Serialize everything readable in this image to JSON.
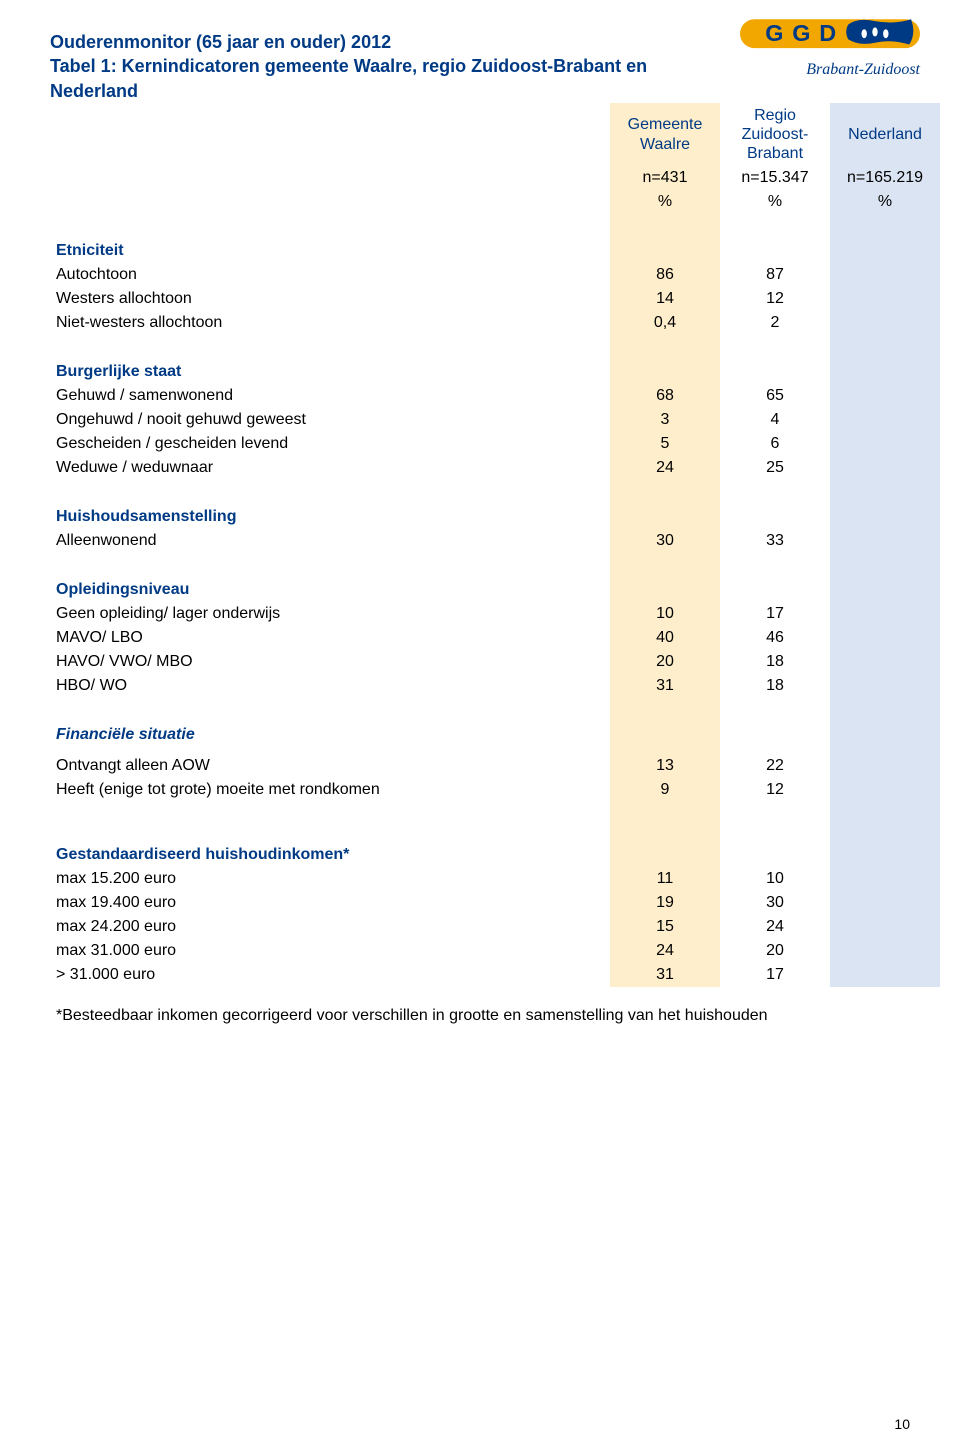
{
  "logo": {
    "top_text": "GGD",
    "sub_text": "Brabant-Zuidoost",
    "band_color": "#f2a600",
    "text_color": "#003a85"
  },
  "header": {
    "title_line1": "Ouderenmonitor (65 jaar en ouder) 2012",
    "title_line2": "Tabel 1: Kernindicatoren gemeente Waalre, regio Zuidoost-Brabant en Nederland"
  },
  "columns": {
    "c1": {
      "label": "Gemeente\nWaalre",
      "n": "n=431",
      "pct": "%",
      "bg": "#ffeecb"
    },
    "c2": {
      "label": "Regio\nZuidoost-\nBrabant",
      "n": "n=15.347",
      "pct": "%",
      "bg": "#ffffff"
    },
    "c3": {
      "label": "Nederland",
      "n": "n=165.219",
      "pct": "%",
      "bg": "#dbe4f2"
    }
  },
  "sections": [
    {
      "heading": "Etniciteit",
      "rows": [
        {
          "label": "Autochtoon",
          "v1": "86",
          "v2": "87",
          "v3": ""
        },
        {
          "label": "Westers allochtoon",
          "v1": "14",
          "v2": "12",
          "v3": ""
        },
        {
          "label": "Niet-westers allochtoon",
          "v1": "0,4",
          "v2": "2",
          "v3": ""
        }
      ]
    },
    {
      "heading": "Burgerlijke staat",
      "rows": [
        {
          "label": "Gehuwd / samenwonend",
          "v1": "68",
          "v2": "65",
          "v3": ""
        },
        {
          "label": "Ongehuwd / nooit gehuwd geweest",
          "v1": "3",
          "v2": "4",
          "v3": ""
        },
        {
          "label": "Gescheiden / gescheiden levend",
          "v1": "5",
          "v2": "6",
          "v3": ""
        },
        {
          "label": "Weduwe / weduwnaar",
          "v1": "24",
          "v2": "25",
          "v3": ""
        }
      ]
    },
    {
      "heading": "Huishoudsamenstelling",
      "rows": [
        {
          "label": "Alleenwonend",
          "v1": "30",
          "v2": "33",
          "v3": ""
        }
      ]
    },
    {
      "heading": "Opleidingsniveau",
      "rows": [
        {
          "label": "Geen opleiding/ lager onderwijs",
          "v1": "10",
          "v2": "17",
          "v3": ""
        },
        {
          "label": "MAVO/ LBO",
          "v1": "40",
          "v2": "46",
          "v3": ""
        },
        {
          "label": "HAVO/ VWO/ MBO",
          "v1": "20",
          "v2": "18",
          "v3": ""
        },
        {
          "label": "HBO/ WO",
          "v1": "31",
          "v2": "18",
          "v3": ""
        }
      ]
    }
  ],
  "section_ital": {
    "heading": "Financiële situatie"
  },
  "sections2": [
    {
      "heading": "",
      "rows": [
        {
          "label": "Ontvangt alleen AOW",
          "v1": "13",
          "v2": "22",
          "v3": ""
        },
        {
          "label": "Heeft (enige tot grote) moeite met rondkomen",
          "v1": "9",
          "v2": "12",
          "v3": ""
        }
      ]
    },
    {
      "heading": "Gestandaardiseerd huishoudinkomen*",
      "rows": [
        {
          "label": "max 15.200 euro",
          "v1": "11",
          "v2": "10",
          "v3": ""
        },
        {
          "label": "max 19.400 euro",
          "v1": "19",
          "v2": "30",
          "v3": ""
        },
        {
          "label": "max 24.200 euro",
          "v1": "15",
          "v2": "24",
          "v3": ""
        },
        {
          "label": "max 31.000 euro",
          "v1": "24",
          "v2": "20",
          "v3": ""
        },
        {
          "label": "> 31.000 euro",
          "v1": "31",
          "v2": "17",
          "v3": ""
        }
      ]
    }
  ],
  "footnote": "*Besteedbaar inkomen gecorrigeerd voor verschillen in grootte en samenstelling van het huishouden",
  "page_number": "10",
  "colors": {
    "brand_blue": "#003a85",
    "col1_bg": "#ffeecb",
    "col3_bg": "#dbe4f2"
  }
}
